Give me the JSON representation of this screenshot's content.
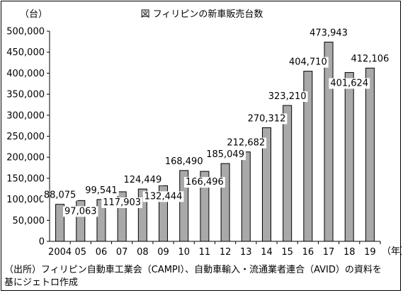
{
  "chart_data": {
    "type": "bar",
    "title": "図 フィリピンの新車販売台数",
    "y_unit": "（台）",
    "x_unit": "（年）",
    "categories": [
      "2004",
      "05",
      "06",
      "07",
      "08",
      "09",
      "10",
      "11",
      "12",
      "13",
      "14",
      "15",
      "16",
      "17",
      "18",
      "19"
    ],
    "values": [
      88075,
      97063,
      99541,
      117903,
      124449,
      132444,
      168490,
      166496,
      185049,
      212682,
      270312,
      323210,
      404710,
      473943,
      401624,
      412106
    ],
    "value_labels": [
      "88,075",
      "97,063",
      "99,541",
      "117,903",
      "124,449",
      "132,444",
      "168,490",
      "166,496",
      "185,049",
      "212,682",
      "270,312",
      "323,210",
      "404,710",
      "473,943",
      "401,624",
      "412,106"
    ],
    "ylim": [
      0,
      500000
    ],
    "yticks": [
      "0",
      "50,000",
      "100,000",
      "150,000",
      "200,000",
      "250,000",
      "300,000",
      "350,000",
      "400,000",
      "450,000",
      "500,000"
    ],
    "grid": false,
    "bar_color": "#a9a9a9",
    "bar_edge_color": "#000000"
  },
  "source_note": {
    "line1": "（出所）フィリピン自動車工業会（CAMPI）、自動車輸入・流通業者連合（AVID）の資料を",
    "line2": "基にジェトロ作成"
  }
}
